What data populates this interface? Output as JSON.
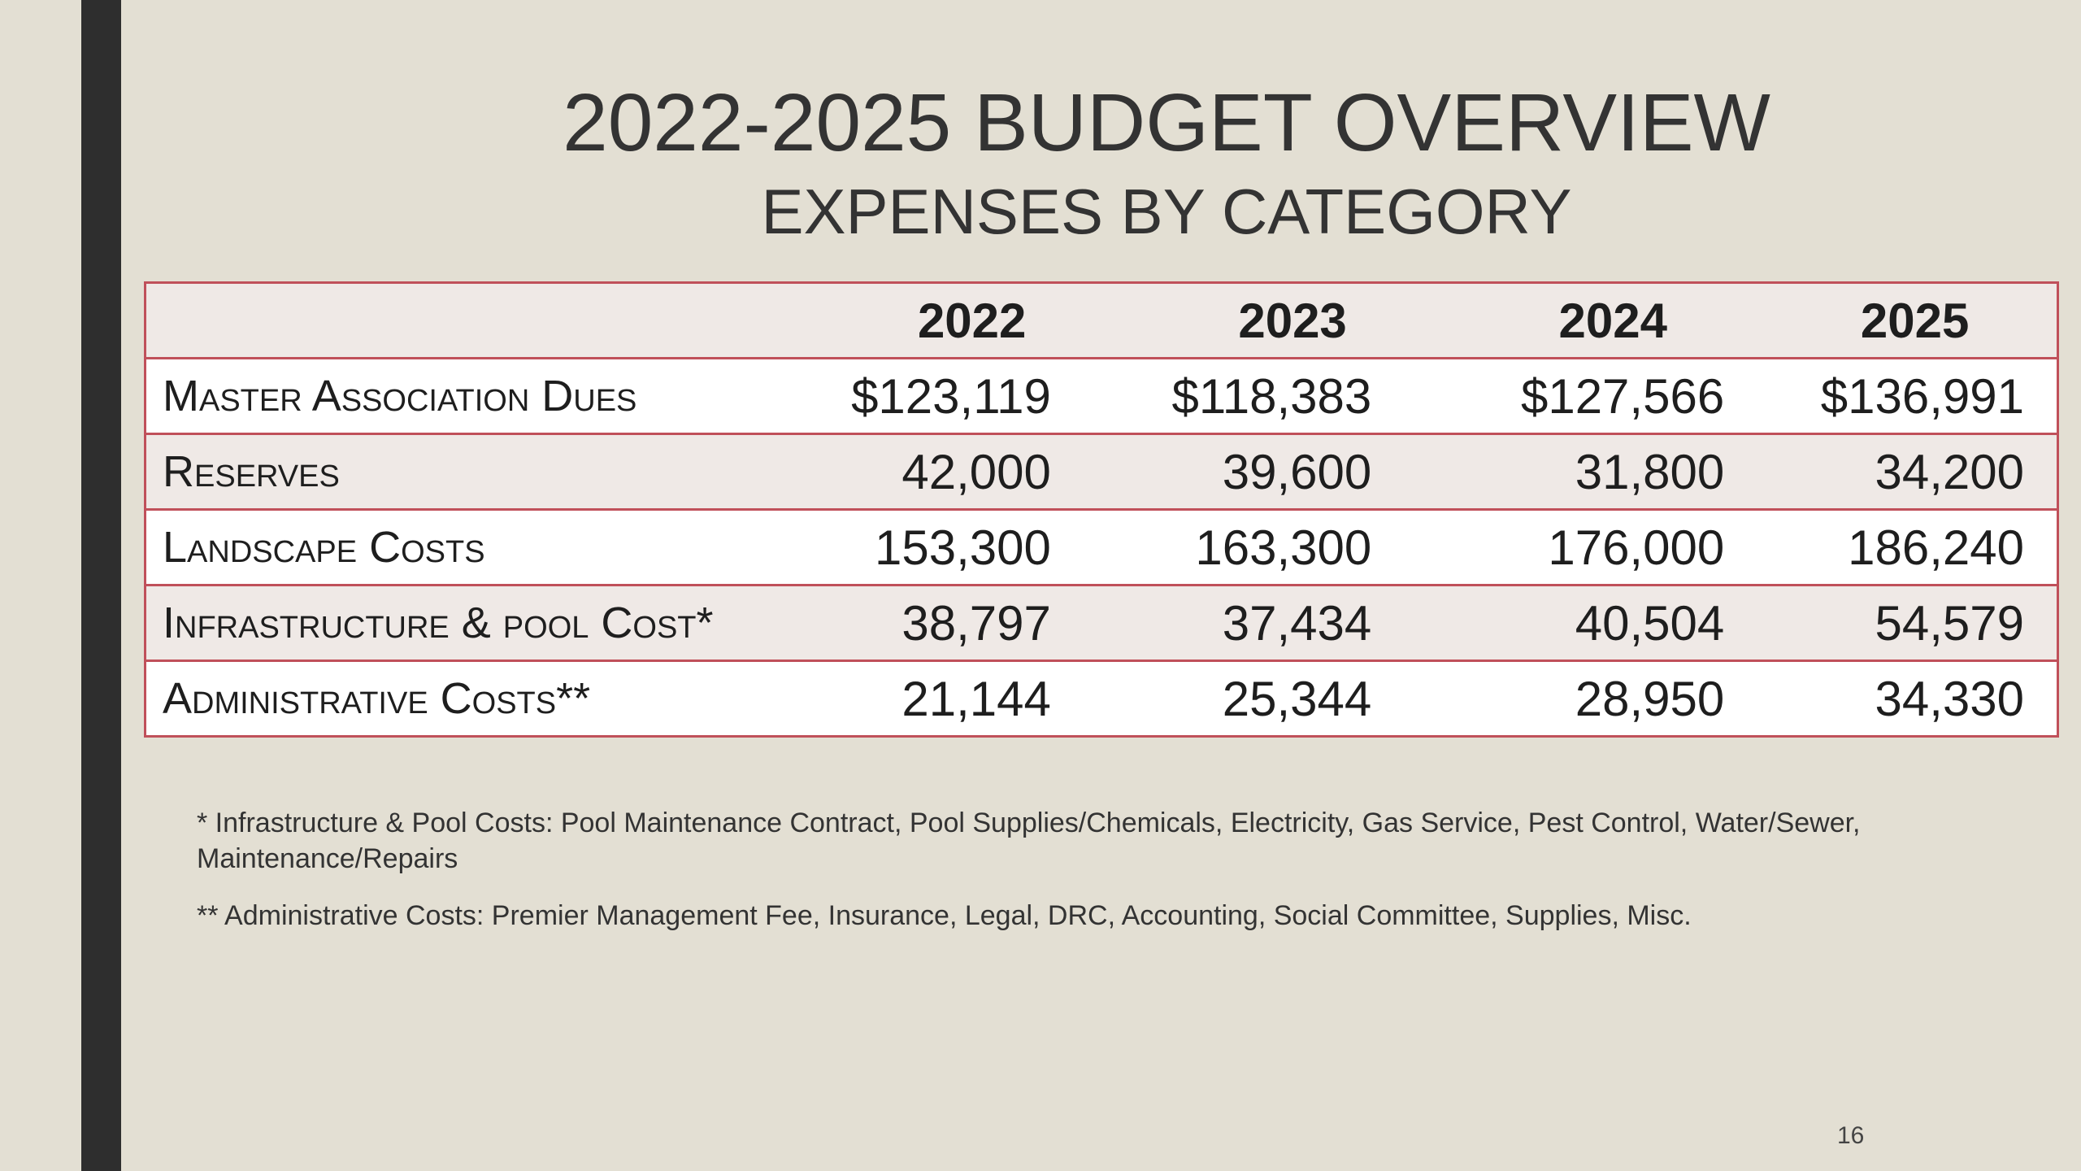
{
  "title": "2022-2025 BUDGET OVERVIEW",
  "subtitle": "EXPENSES BY CATEGORY",
  "table": {
    "headers": [
      "",
      "2022",
      "2023",
      "2024",
      "2025"
    ],
    "rows": [
      {
        "label": "Master Association Dues",
        "values": [
          "$123,119",
          "$118,383",
          "$127,566",
          "$136,991"
        ]
      },
      {
        "label": "Reserves",
        "values": [
          "42,000",
          "39,600",
          "31,800",
          "34,200"
        ]
      },
      {
        "label": "Landscape Costs",
        "values": [
          "153,300",
          "163,300",
          "176,000",
          "186,240"
        ]
      },
      {
        "label": "Infrastructure & pool Cost*",
        "values": [
          "38,797",
          "37,434",
          "40,504",
          "54,579"
        ]
      },
      {
        "label": "Administrative Costs**",
        "values": [
          "21,144",
          "25,344",
          "28,950",
          "34,330"
        ]
      }
    ]
  },
  "notes": {
    "note1": "* Infrastructure & Pool Costs:  Pool Maintenance Contract, Pool Supplies/Chemicals, Electricity, Gas Service, Pest Control, Water/Sewer, Maintenance/Repairs",
    "note2": "** Administrative Costs:  Premier Management Fee, Insurance, Legal, DRC, Accounting, Social Committee, Supplies, Misc."
  },
  "page_number": "16"
}
